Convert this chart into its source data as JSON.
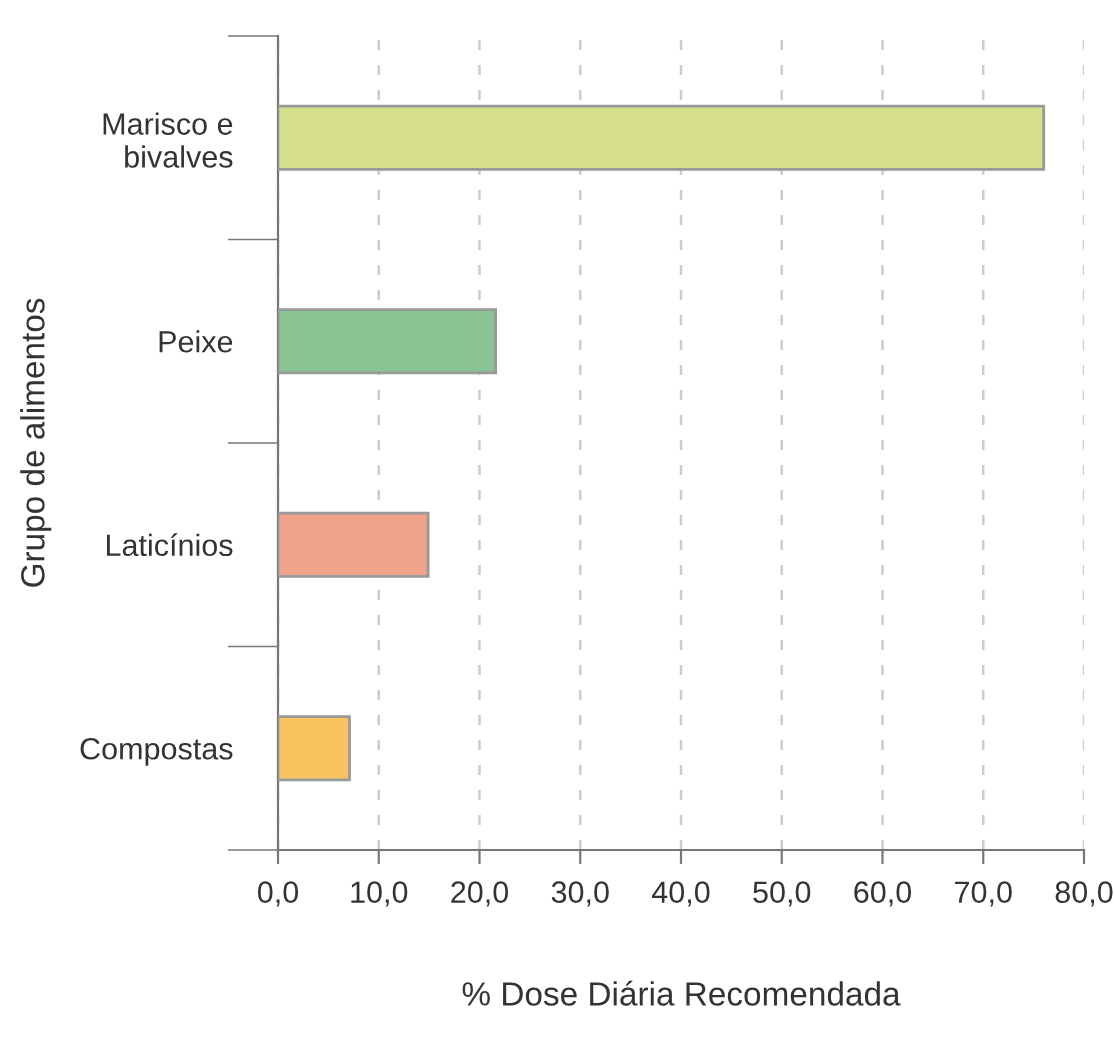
{
  "chart_data": {
    "type": "bar",
    "orientation": "horizontal",
    "categories": [
      "Marisco e\nbivalves",
      "Peixe",
      "Laticínios",
      "Compostas"
    ],
    "values": [
      76.0,
      21.6,
      14.9,
      7.1
    ],
    "colors": [
      "#d6e08a",
      "#88c592",
      "#efa38a",
      "#f9c45f"
    ],
    "xlabel": "% Dose Diária Recomendada",
    "ylabel": "Grupo de alimentos",
    "xlim": [
      0,
      80
    ],
    "xticks": [
      {
        "value": 0,
        "label": "0,0"
      },
      {
        "value": 10,
        "label": "10,0"
      },
      {
        "value": 20,
        "label": "20,0"
      },
      {
        "value": 30,
        "label": "30,0"
      },
      {
        "value": 40,
        "label": "40,0"
      },
      {
        "value": 50,
        "label": "50,0"
      },
      {
        "value": 60,
        "label": "60,0"
      },
      {
        "value": 70,
        "label": "70,0"
      },
      {
        "value": 80,
        "label": "80,0"
      }
    ],
    "grid": "x",
    "legend": false
  }
}
